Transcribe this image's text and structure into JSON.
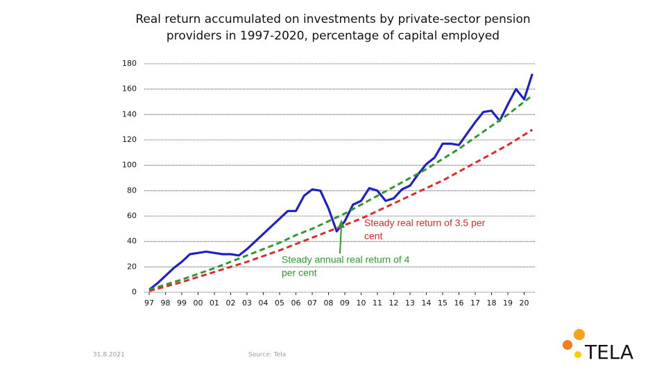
{
  "chart_data": {
    "type": "line",
    "title": "Real return accumulated on investments by private-sector pension providers in 1997-2020, percentage of capital employed",
    "xlim": [
      1996.7,
      2020.7
    ],
    "ylim": [
      0,
      180
    ],
    "yticks": [
      0,
      20,
      40,
      60,
      80,
      100,
      120,
      140,
      160,
      180
    ],
    "xticks": [
      {
        "value": 1997,
        "label": "97"
      },
      {
        "value": 1998,
        "label": "98"
      },
      {
        "value": 1999,
        "label": "99"
      },
      {
        "value": 2000,
        "label": "00"
      },
      {
        "value": 2001,
        "label": "01"
      },
      {
        "value": 2002,
        "label": "02"
      },
      {
        "value": 2003,
        "label": "03"
      },
      {
        "value": 2004,
        "label": "04"
      },
      {
        "value": 2005,
        "label": "05"
      },
      {
        "value": 2006,
        "label": "06"
      },
      {
        "value": 2007,
        "label": "07"
      },
      {
        "value": 2008,
        "label": "08"
      },
      {
        "value": 2009,
        "label": "09"
      },
      {
        "value": 2010,
        "label": "10"
      },
      {
        "value": 2011,
        "label": "11"
      },
      {
        "value": 2012,
        "label": "12"
      },
      {
        "value": 2013,
        "label": "13"
      },
      {
        "value": 2014,
        "label": "14"
      },
      {
        "value": 2015,
        "label": "15"
      },
      {
        "value": 2016,
        "label": "16"
      },
      {
        "value": 2017,
        "label": "17"
      },
      {
        "value": 2018,
        "label": "18"
      },
      {
        "value": 2019,
        "label": "19"
      },
      {
        "value": 2020,
        "label": "20"
      }
    ],
    "grid": true,
    "series": [
      {
        "color": "#1f1fc8",
        "dashed": false,
        "x": [
          1997,
          1997.5,
          1998,
          1998.5,
          1999,
          1999.5,
          2000,
          2000.5,
          2001,
          2001.5,
          2002,
          2002.5,
          2003,
          2003.5,
          2004,
          2004.5,
          2005,
          2005.5,
          2006,
          2006.5,
          2007,
          2007.5,
          2008,
          2008.5,
          2009,
          2009.5,
          2010,
          2010.5,
          2011,
          2011.5,
          2012,
          2012.5,
          2013,
          2013.5,
          2014,
          2014.5,
          2015,
          2015.5,
          2016,
          2016.5,
          2017,
          2017.5,
          2018,
          2018.5,
          2019,
          2019.5,
          2020,
          2020.5
        ],
        "values": [
          2,
          7,
          13,
          19,
          24,
          30,
          31,
          32,
          31,
          30,
          30,
          29,
          34,
          40,
          46,
          52,
          58,
          64,
          64,
          76,
          81,
          80,
          66,
          48,
          56,
          69,
          72,
          82,
          80,
          72,
          74,
          81,
          84,
          93,
          101,
          106,
          117,
          117,
          116,
          125,
          134,
          142,
          143,
          135,
          148,
          160,
          152,
          172
        ]
      },
      {
        "color": "#2a9a2a",
        "dashed": true,
        "x": [
          1997,
          1998,
          1999,
          2000,
          2001,
          2002,
          2003,
          2004,
          2005,
          2006,
          2007,
          2008,
          2009,
          2010,
          2011,
          2012,
          2013,
          2014,
          2015,
          2016,
          2017,
          2018,
          2019,
          2020,
          2020.5
        ],
        "values": [
          2,
          6,
          10,
          14.5,
          19,
          24,
          29,
          34,
          39,
          45,
          50,
          56,
          62,
          69,
          76,
          83,
          90,
          97,
          105,
          113,
          122,
          131,
          140,
          150,
          155
        ]
      },
      {
        "color": "#e02828",
        "dashed": true,
        "x": [
          1997,
          1998,
          1999,
          2000,
          2001,
          2002,
          2003,
          2004,
          2005,
          2006,
          2007,
          2008,
          2009,
          2010,
          2011,
          2012,
          2013,
          2014,
          2015,
          2016,
          2017,
          2018,
          2019,
          2020,
          2020.5
        ],
        "values": [
          1,
          4.5,
          8,
          12,
          16,
          20,
          24,
          28.5,
          33,
          38,
          43,
          48,
          53,
          58,
          64,
          70,
          76,
          82,
          88,
          95,
          102,
          109,
          116,
          124,
          128
        ]
      }
    ],
    "annotations": [
      {
        "lines": [
          "Steady real return of 3.5 per",
          "cent"
        ],
        "color": "#e02828"
      },
      {
        "lines": [
          "Steady annual real return of 4",
          "per cent"
        ],
        "color": "#2a9a2a"
      }
    ]
  },
  "footer": {
    "date": "31.8.2021",
    "source": "Source: Tela",
    "logo": "TELA"
  }
}
